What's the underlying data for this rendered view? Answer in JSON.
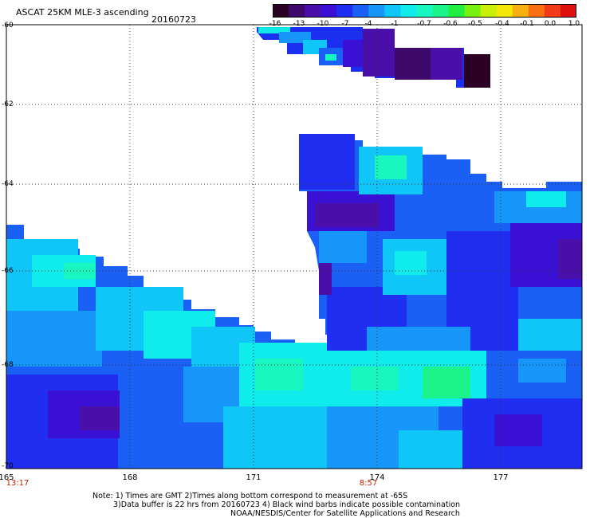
{
  "header": {
    "title": "ASCAT 25KM MLE-3 ascending",
    "date": "20160723"
  },
  "colorbar": {
    "ticks": [
      "-16",
      "-13",
      "-10",
      "-7",
      "-4",
      "-1",
      "-0.7",
      "-0.6",
      "-0.5",
      "-0.4",
      "-0.1",
      "0.0",
      "1.0"
    ],
    "colors": [
      "#2a0024",
      "#3d0a6b",
      "#4a0fa8",
      "#3a10d4",
      "#1f2ef0",
      "#1a60f5",
      "#1596f8",
      "#10c6f8",
      "#10ecec",
      "#18f7c0",
      "#1af48a",
      "#20ee40",
      "#78f010",
      "#c8f008",
      "#f4e808",
      "#f8b010",
      "#f87010",
      "#f03a18",
      "#e01010"
    ]
  },
  "map": {
    "lat_labels": [
      "-60",
      "-62",
      "-64",
      "-66",
      "-68",
      "-70"
    ],
    "lon_labels": [
      "165",
      "168",
      "171",
      "174",
      "177"
    ],
    "time_labels": [
      "13:17",
      "8:57"
    ]
  },
  "footer": {
    "note_line1": "Note: 1) Times are GMT 2)Times along bottom correspond to measurement at -65S",
    "note_line2": "3)Data buffer is 22 hrs from 20160723 4) Black wind barbs indicate possible contamination",
    "note_line3": "NOAA/NESDIS/Center for Satellite Applications and Research"
  }
}
